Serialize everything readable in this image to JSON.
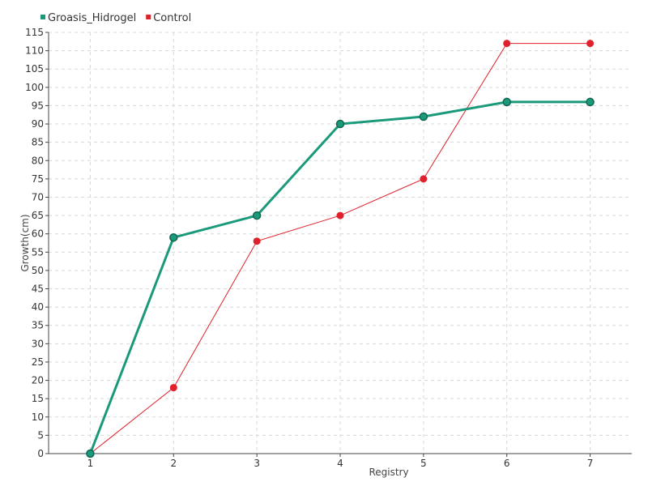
{
  "chart_data": {
    "type": "line",
    "title": "",
    "xlabel": "Registry",
    "ylabel": "Growth(cm)",
    "x": [
      1,
      2,
      3,
      4,
      5,
      6,
      7
    ],
    "xlim": [
      0.5,
      7.5
    ],
    "ylim": [
      0,
      115
    ],
    "ytick_step": 5,
    "grid": true,
    "legend_position": "top-left",
    "series": [
      {
        "name": "Groasis_Hidrogel",
        "color": "#1a9a7a",
        "values": [
          0,
          59,
          65,
          90,
          92,
          96,
          96
        ]
      },
      {
        "name": "Control",
        "color": "#e0202a",
        "values": [
          0,
          18,
          58,
          65,
          75,
          112,
          112
        ]
      }
    ]
  }
}
